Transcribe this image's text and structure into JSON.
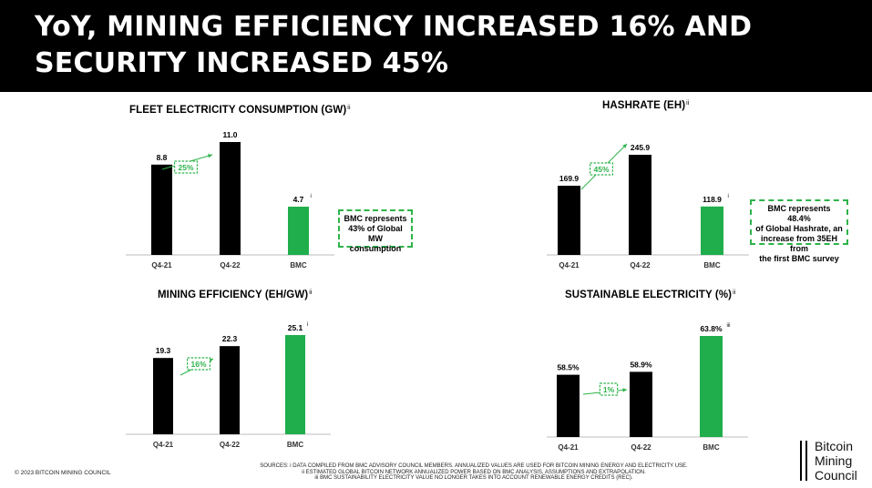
{
  "header": {
    "title": "YoY, MINING EFFICIENCY INCREASED 16% AND SECURITY INCREASED 45%"
  },
  "colors": {
    "black_bar": "#000000",
    "green_bar": "#1fae4b",
    "accent": "#2db34a",
    "header_bg": "#000000"
  },
  "chart_data": [
    {
      "id": "fleet",
      "type": "bar",
      "title": "FLEET ELECTRICITY CONSUMPTION (GW)",
      "title_note": "ii",
      "categories": [
        "Q4-21",
        "Q4-22",
        "BMC"
      ],
      "values": [
        8.8,
        11.0,
        4.7
      ],
      "value_labels": [
        "8.8",
        "11.0",
        "4.7"
      ],
      "value_notes": [
        "",
        "",
        "i"
      ],
      "ylim": [
        0,
        11.0
      ],
      "growth_label": "25%",
      "callout": [
        "BMC represents",
        "43% of Global",
        "MW consumption"
      ]
    },
    {
      "id": "hashrate",
      "type": "bar",
      "title": "HASHRATE (EH)",
      "title_note": "ii",
      "categories": [
        "Q4-21",
        "Q4-22",
        "BMC"
      ],
      "values": [
        169.9,
        245.9,
        118.9
      ],
      "value_labels": [
        "169.9",
        "245.9",
        "118.9"
      ],
      "value_notes": [
        "",
        "",
        "i"
      ],
      "ylim": [
        0,
        245.9
      ],
      "growth_label": "45%",
      "callout": [
        "BMC represents 48.4%",
        "of Global Hashrate, an",
        "increase from 35EH from",
        "the first BMC survey"
      ]
    },
    {
      "id": "efficiency",
      "type": "bar",
      "title": "MINING EFFICIENCY (EH/GW)",
      "title_note": "ii",
      "categories": [
        "Q4-21",
        "Q4-22",
        "BMC"
      ],
      "values": [
        19.3,
        22.3,
        25.1
      ],
      "value_labels": [
        "19.3",
        "22.3",
        "25.1"
      ],
      "value_notes": [
        "",
        "",
        "i"
      ],
      "ylim": [
        0,
        25.1
      ],
      "growth_label": "16%",
      "callout": []
    },
    {
      "id": "sustainable",
      "type": "bar",
      "title": "SUSTAINABLE ELECTRICITY (%)",
      "title_note": "ii",
      "categories": [
        "Q4-21",
        "Q4-22",
        "BMC"
      ],
      "values": [
        58.5,
        58.9,
        63.8
      ],
      "value_labels": [
        "58.5%",
        "58.9%",
        "63.8%"
      ],
      "value_notes": [
        "",
        "",
        "iii"
      ],
      "ylim": [
        50,
        63.8
      ],
      "growth_label": "1%",
      "callout": []
    }
  ],
  "footer": {
    "copyright": "© 2023 BITCOIN MINING COUNCIL",
    "sources": [
      "SOURCES: i DATA COMPILED FROM BMC ADVISORY COUNCIL MEMBERS. ANNUALIZED VALUES ARE USED FOR BITCOIN MINING ENERGY AND ELECTRICITY USE.",
      "ii ESTIMATED GLOBAL BITCOIN NETWORK ANNUALIZED POWER BASED ON BMC ANALYSIS, ASSUMPTIONS AND EXTRAPOLATION.",
      "iii BMC SUSTAINABILITY ELECTRICITY VALUE NO LONGER TAKES INTO ACCOUNT RENEWABLE ENERGY CREDITS (REC)."
    ],
    "logo": [
      "Bitcoin",
      "Mining",
      "Council"
    ]
  }
}
